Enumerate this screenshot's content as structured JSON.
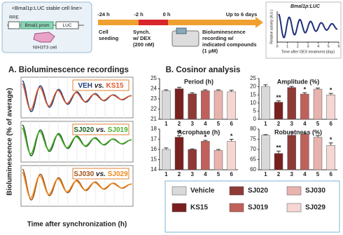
{
  "header": {
    "construct_title": "<Bmal1p:LUC stable cell line>",
    "rre": "RRE",
    "promoter": "Bmal1 prom",
    "reporter": "LUC",
    "cell": "NIH3T3 cell",
    "timeline": {
      "times": [
        "-24 h",
        "-2 h",
        "0 h",
        "Up to 6 days"
      ],
      "seeding": [
        "Cell",
        "seeding"
      ],
      "synch": [
        "Synch.",
        "w/ DEX",
        "(200 nM)"
      ],
      "recording": [
        "Bioluminescence",
        "recording w/",
        "indicated compounds",
        "(1 μM)"
      ]
    },
    "inset": {
      "title": "Bmal1p:LUC",
      "ylabel": "Relative activity (A.U.)",
      "xlabel": "Time after DEX treatment (day)",
      "xlim": [
        0,
        6
      ],
      "xticks": [
        0,
        1,
        2,
        3,
        4,
        5,
        6
      ]
    }
  },
  "panel_a": {
    "title": "A. Bioluminescence recordings",
    "ylabel": "Bioluminescence (% of average)",
    "xlabel": "Time after synchronization (h)",
    "comparisons": [
      {
        "a": "VEH",
        "vs": "vs.",
        "b": "KS15",
        "color_a": "#1f3f7a",
        "color_b": "#e0572a"
      },
      {
        "a": "SJ020",
        "vs": "vs.",
        "b": "SJ019",
        "color_a": "#1e5e22",
        "color_b": "#4caf2a"
      },
      {
        "a": "SJ030",
        "vs": "vs.",
        "b": "SJ029",
        "color_a": "#a0521a",
        "color_b": "#f08a1c"
      }
    ]
  },
  "panel_b": {
    "title": "B. Cosinor analysis",
    "categories": [
      "1",
      "2",
      "3",
      "4",
      "5",
      "6"
    ],
    "colors": [
      "#d9d9d9",
      "#7a1f1f",
      "#8e3a36",
      "#c0605a",
      "#e8b3ad",
      "#f5d6d2"
    ],
    "charts": [
      {
        "title": "Period (h)",
        "ylim": [
          21,
          25
        ],
        "yticks": [
          21,
          22,
          23,
          24,
          25
        ],
        "values": [
          23.8,
          24.0,
          23.5,
          23.8,
          23.8,
          23.7
        ],
        "errors": [
          0.1,
          0.15,
          0.1,
          0.1,
          0.1,
          0.15
        ],
        "significance": [
          null,
          null,
          null,
          null,
          null,
          null
        ]
      },
      {
        "title": "Amplitude (%)",
        "ylim": [
          0,
          25
        ],
        "yticks": [
          0,
          5,
          10,
          15,
          20,
          25
        ],
        "values": [
          20,
          10.5,
          19.5,
          15.5,
          18.5,
          15
        ],
        "errors": [
          1.2,
          0.8,
          0.7,
          0.8,
          0.7,
          0.9
        ],
        "significance": [
          null,
          "**",
          null,
          "*",
          null,
          "*"
        ]
      },
      {
        "title": "Acrophase (h)",
        "ylim": [
          14,
          18
        ],
        "yticks": [
          14,
          15,
          16,
          17,
          18
        ],
        "values": [
          16.0,
          17.2,
          16.0,
          16.8,
          15.9,
          16.8
        ],
        "errors": [
          0.15,
          0.15,
          0.05,
          0.1,
          0.1,
          0.2
        ],
        "significance": [
          null,
          "**",
          null,
          "*",
          null,
          "*"
        ]
      },
      {
        "title": "Robustness (%)",
        "ylim": [
          60,
          80
        ],
        "yticks": [
          60,
          65,
          70,
          75,
          80
        ],
        "values": [
          77,
          68,
          77,
          77.5,
          76,
          72
        ],
        "errors": [
          0.3,
          1.2,
          1.5,
          0.5,
          0.8,
          1.2
        ],
        "significance": [
          null,
          "**",
          null,
          null,
          null,
          "*"
        ]
      }
    ],
    "legend": [
      "Vehicle",
      "KS15",
      "SJ020",
      "SJ019",
      "SJ030",
      "SJ029"
    ]
  }
}
